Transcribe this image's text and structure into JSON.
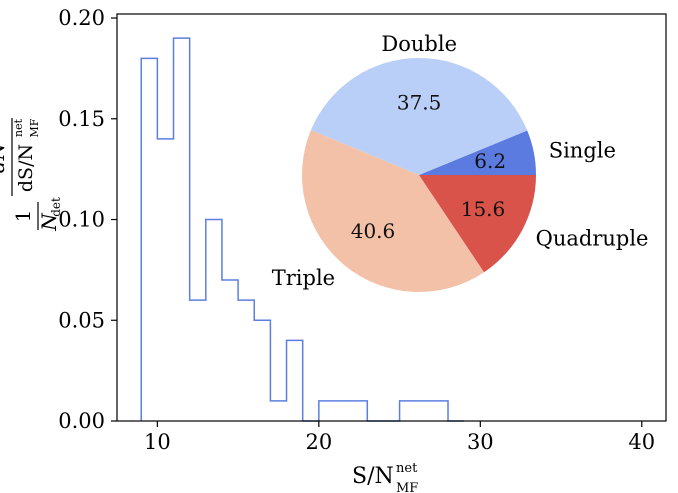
{
  "chart_data": [
    {
      "type": "histogram",
      "xlabel_main": "S/N",
      "xlabel_sub": "MF",
      "xlabel_sup": "net",
      "ylabel_num_top": "1",
      "ylabel_den_top": "N",
      "ylabel_den_top_sub": "det",
      "ylabel_frac_num": "dN",
      "ylabel_frac_den": "dS/N",
      "ylabel_frac_den_sup": "net",
      "ylabel_frac_den_sub": "MF",
      "xlim": [
        7.5,
        41.5
      ],
      "ylim": [
        0,
        0.202
      ],
      "xticks": [
        10,
        20,
        30,
        40
      ],
      "yticks": [
        0.0,
        0.05,
        0.1,
        0.15,
        0.2
      ],
      "ytick_labels": [
        "0.00",
        "0.05",
        "0.10",
        "0.15",
        "0.20"
      ],
      "xtick_labels": [
        "10",
        "20",
        "30",
        "40"
      ],
      "line_color": "#5b7fe0",
      "bins": [
        9,
        10,
        11,
        12,
        13,
        14,
        15,
        16,
        17,
        18,
        19,
        20,
        21,
        22,
        23,
        24,
        25,
        26,
        27,
        28,
        29
      ],
      "values": [
        0.18,
        0.14,
        0.19,
        0.06,
        0.1,
        0.07,
        0.06,
        0.05,
        0.01,
        0.04,
        0.0,
        0.01,
        0.01,
        0.01,
        0.0,
        0.0,
        0.01,
        0.01,
        0.01,
        0.0
      ]
    },
    {
      "type": "pie",
      "slices": [
        {
          "label": "Single",
          "value": 6.2,
          "pct_label": "6.2",
          "color": "#5b7be0"
        },
        {
          "label": "Double",
          "value": 37.5,
          "pct_label": "37.5",
          "color": "#b9cff7"
        },
        {
          "label": "Triple",
          "value": 40.6,
          "pct_label": "40.6",
          "color": "#f3c1a7"
        },
        {
          "label": "Quadruple",
          "value": 15.6,
          "pct_label": "15.6",
          "color": "#d9534a"
        }
      ]
    }
  ]
}
